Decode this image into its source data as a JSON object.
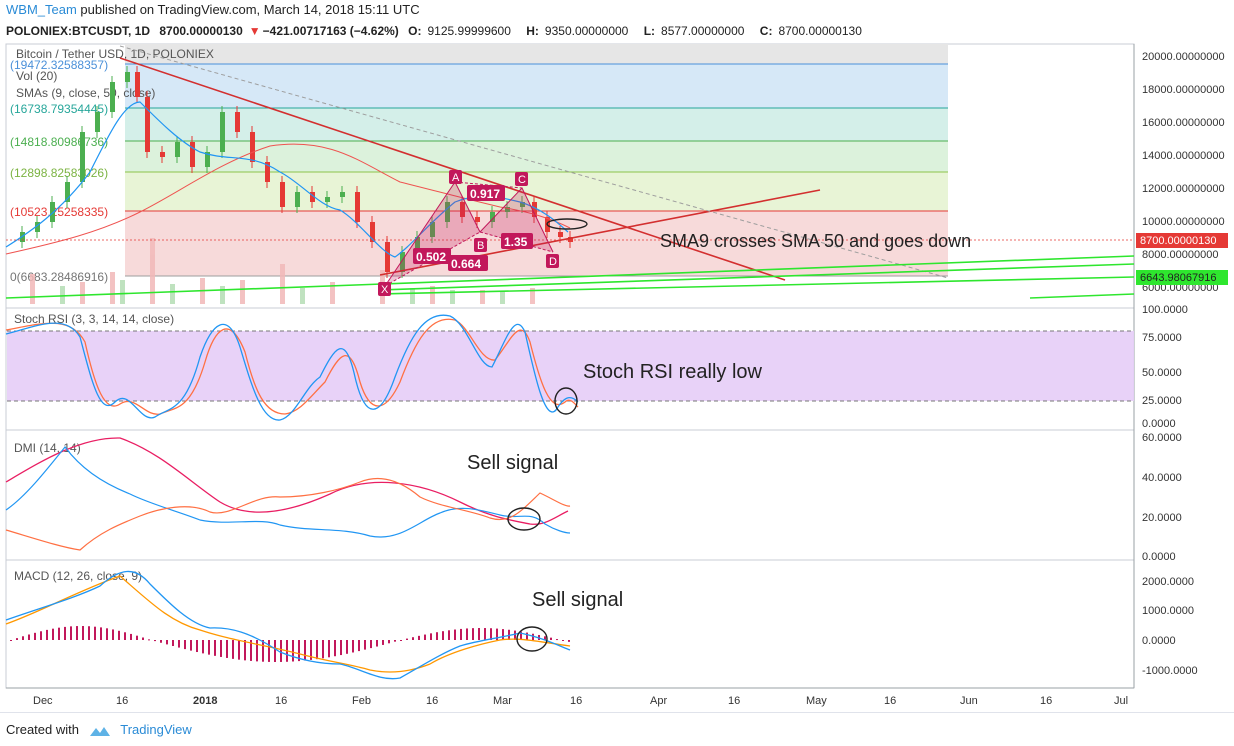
{
  "header": {
    "author": "WBM_Team",
    "published": "published on TradingView.com, March 14, 2018 15:11 UTC",
    "symbol": "POLONIEX:BTCUSDT, 1D",
    "price": "8700.00000130",
    "change_arrow": "▼",
    "change": "−421.00717163 (−4.62%)",
    "ohlc": {
      "o_label": "O:",
      "o": "9125.99999600",
      "h_label": "H:",
      "h": "9350.00000000",
      "l_label": "L:",
      "l": "8577.00000000",
      "c_label": "C:",
      "c": "8700.00000130"
    }
  },
  "price_pane": {
    "title": "Bitcoin / Tether USD, 1D, POLONIEX",
    "vol_label": "Vol (20)",
    "sma_label": "SMAs (9, close, 50, close)",
    "y_ticks": [
      "20000.00000000",
      "18000.00000000",
      "16000.00000000",
      "14000.00000000",
      "12000.00000000",
      "10000.00000000",
      "8000.00000000",
      "6000.00000000"
    ],
    "y_range": [
      5000,
      20600
    ],
    "fib_levels": [
      {
        "value": 19472,
        "label": "(19472.32588357)",
        "color": "#4a90d9"
      },
      {
        "value": 16738,
        "label": "(16738.79354445)",
        "color": "#26a69a"
      },
      {
        "value": 14818,
        "label": "(14818.80986736)",
        "color": "#4caf50"
      },
      {
        "value": 12898,
        "label": "(12898.82583026)",
        "color": "#8bc34a"
      },
      {
        "value": 10523,
        "label": "(10523.25258335)",
        "color": "#e53935"
      },
      {
        "value": 6683,
        "label": "0(6683.28486916)",
        "color": "#9e9e9e"
      }
    ],
    "last_price_tag": "8700.00000130",
    "support_tag": "6643.98067916",
    "annotation": "SMA9 crosses SMA 50 and goes down",
    "pattern_points": {
      "x": "X",
      "a": "A",
      "b": "B",
      "c": "C",
      "d": "D"
    },
    "pattern_ratios": {
      "xa": "0.502",
      "ab": "0.917",
      "bc": "0.664",
      "cd": "1.35"
    }
  },
  "stoch_pane": {
    "label": "Stoch RSI (3, 3, 14, 14, close)",
    "y_ticks": [
      "100.0000",
      "75.0000",
      "50.0000",
      "25.0000",
      "0.0000"
    ],
    "annotation": "Stoch RSI really low"
  },
  "dmi_pane": {
    "label": "DMI (14, 14)",
    "y_ticks": [
      "60.0000",
      "40.0000",
      "20.0000",
      "0.0000"
    ],
    "annotation": "Sell signal"
  },
  "macd_pane": {
    "label": "MACD (12, 26, close, 9)",
    "y_ticks": [
      "2000.0000",
      "1000.0000",
      "0.0000",
      "-1000.0000"
    ],
    "annotation": "Sell signal"
  },
  "x_axis": {
    "labels": [
      "Dec",
      "16",
      "2018",
      "16",
      "Feb",
      "16",
      "Mar",
      "16",
      "Apr",
      "16",
      "May",
      "16",
      "Jun",
      "16",
      "Jul"
    ]
  },
  "footer": {
    "created_with": "Created with",
    "brand": "TradingView"
  },
  "colors": {
    "up": "#4caf50",
    "down": "#e53935",
    "sma9": "#2196f3",
    "sma50": "#ef5350",
    "stoch_k": "#2196f3",
    "stoch_d": "#ff7043",
    "dmi_plus": "#2196f3",
    "dmi_minus": "#ff7043",
    "adx": "#e91e63",
    "macd": "#2196f3",
    "signal": "#ff9800",
    "hist": "#c2185b",
    "pattern": "#c2185b"
  }
}
